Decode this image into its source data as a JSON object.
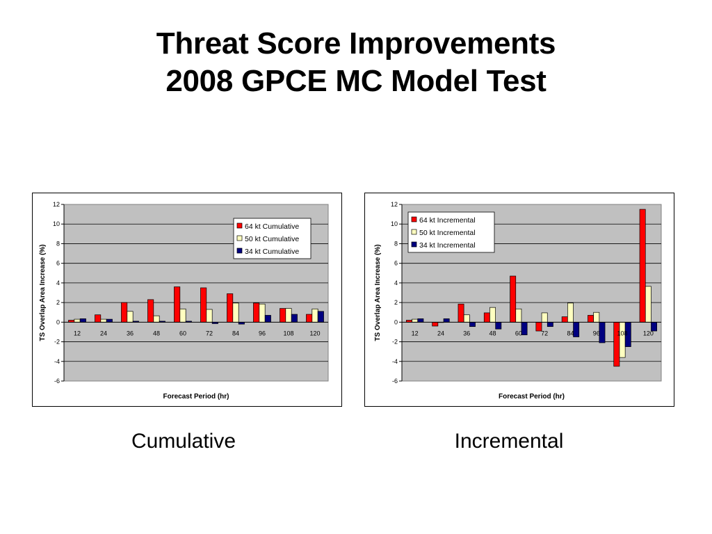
{
  "slide": {
    "title_line1": "Threat Score Improvements",
    "title_line2": "2008 GPCE MC Model Test",
    "caption_left": "Cumulative",
    "caption_right": "Incremental"
  },
  "colors": {
    "plot_bg": "#c0c0c0",
    "series": [
      "#ff0000",
      "#ffffc0",
      "#000080"
    ]
  },
  "chart_data": [
    {
      "type": "bar",
      "xlabel": "Forecast Period (hr)",
      "ylabel": "TS Overlap Area Increase  (%)",
      "ylim": [
        -6,
        12
      ],
      "yticks": [
        "12",
        "10",
        "8",
        "6",
        "4",
        "2",
        "0",
        "-2",
        "-4",
        "-6"
      ],
      "grid": true,
      "legend_position": "top-right",
      "categories": [
        "12",
        "24",
        "36",
        "48",
        "60",
        "72",
        "84",
        "96",
        "108",
        "120"
      ],
      "series": [
        {
          "name": "64 kt Cumulative",
          "values": [
            0.2,
            0.75,
            2.0,
            2.3,
            3.6,
            3.5,
            2.9,
            1.95,
            1.4,
            0.8
          ]
        },
        {
          "name": "50 kt Cumulative",
          "values": [
            0.3,
            0.3,
            1.1,
            0.65,
            1.35,
            1.3,
            1.95,
            1.85,
            1.4,
            1.35
          ]
        },
        {
          "name": "34 kt Cumulative",
          "values": [
            0.35,
            0.3,
            0.1,
            0.1,
            0.1,
            -0.15,
            -0.2,
            0.7,
            0.8,
            1.1
          ]
        }
      ]
    },
    {
      "type": "bar",
      "xlabel": "Forecast Period (hr)",
      "ylabel": "TS Overlap Area Increase (%)",
      "ylim": [
        -6,
        12
      ],
      "yticks": [
        "12",
        "10",
        "8",
        "6",
        "4",
        "2",
        "0",
        "-2",
        "-4",
        "-6"
      ],
      "grid": true,
      "legend_position": "top-left",
      "categories": [
        "12",
        "24",
        "36",
        "48",
        "60",
        "72",
        "84",
        "96",
        "108",
        "120"
      ],
      "series": [
        {
          "name": "64 kt Incremental",
          "values": [
            0.2,
            -0.4,
            1.85,
            0.95,
            4.7,
            -0.9,
            0.55,
            0.7,
            -4.5,
            11.5
          ]
        },
        {
          "name": "50 kt Incremental",
          "values": [
            0.3,
            0.0,
            0.75,
            1.5,
            1.35,
            0.95,
            1.95,
            1.0,
            -3.6,
            3.65
          ]
        },
        {
          "name": "34 kt Incremental",
          "values": [
            0.35,
            0.35,
            -0.45,
            -0.7,
            -1.3,
            -0.45,
            -1.5,
            -2.1,
            -2.5,
            -0.9
          ]
        }
      ]
    }
  ]
}
